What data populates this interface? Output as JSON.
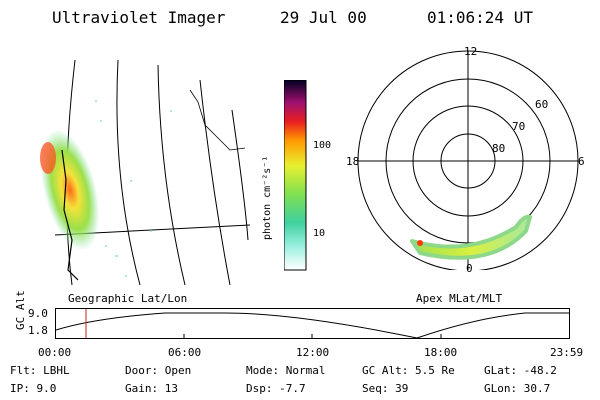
{
  "header": {
    "title": "Ultraviolet Imager",
    "date": "29 Jul 00",
    "time": "01:06:24 UT"
  },
  "geo_panel": {
    "label": "Geographic Lat/Lon"
  },
  "polar_panel": {
    "label": "Apex MLat/MLT",
    "ring_labels": [
      "60",
      "70",
      "80"
    ],
    "mlt_labels": [
      "12",
      "18",
      "6",
      "0"
    ]
  },
  "colorbar": {
    "unit": "photon cm⁻²s⁻¹",
    "ticks": [
      "100",
      "10"
    ]
  },
  "orbit": {
    "ylabel": "GC Alt",
    "yticks": [
      "9.0",
      "1.8"
    ],
    "xticks": [
      "00:00",
      "06:00",
      "12:00",
      "18:00",
      "23:59"
    ]
  },
  "info": {
    "row1": [
      "Flt: LBHL",
      "Door: Open",
      "Mode: Normal",
      "GC Alt: 5.5 Re",
      "GLat: -48.2"
    ],
    "row2": [
      "IP: 9.0",
      "Gain: 13",
      "Dsp:  -7.7",
      "Seq: 39",
      "GLon: 30.7"
    ]
  },
  "colors": {
    "marker": "#cc2222",
    "curve": "#000000"
  }
}
